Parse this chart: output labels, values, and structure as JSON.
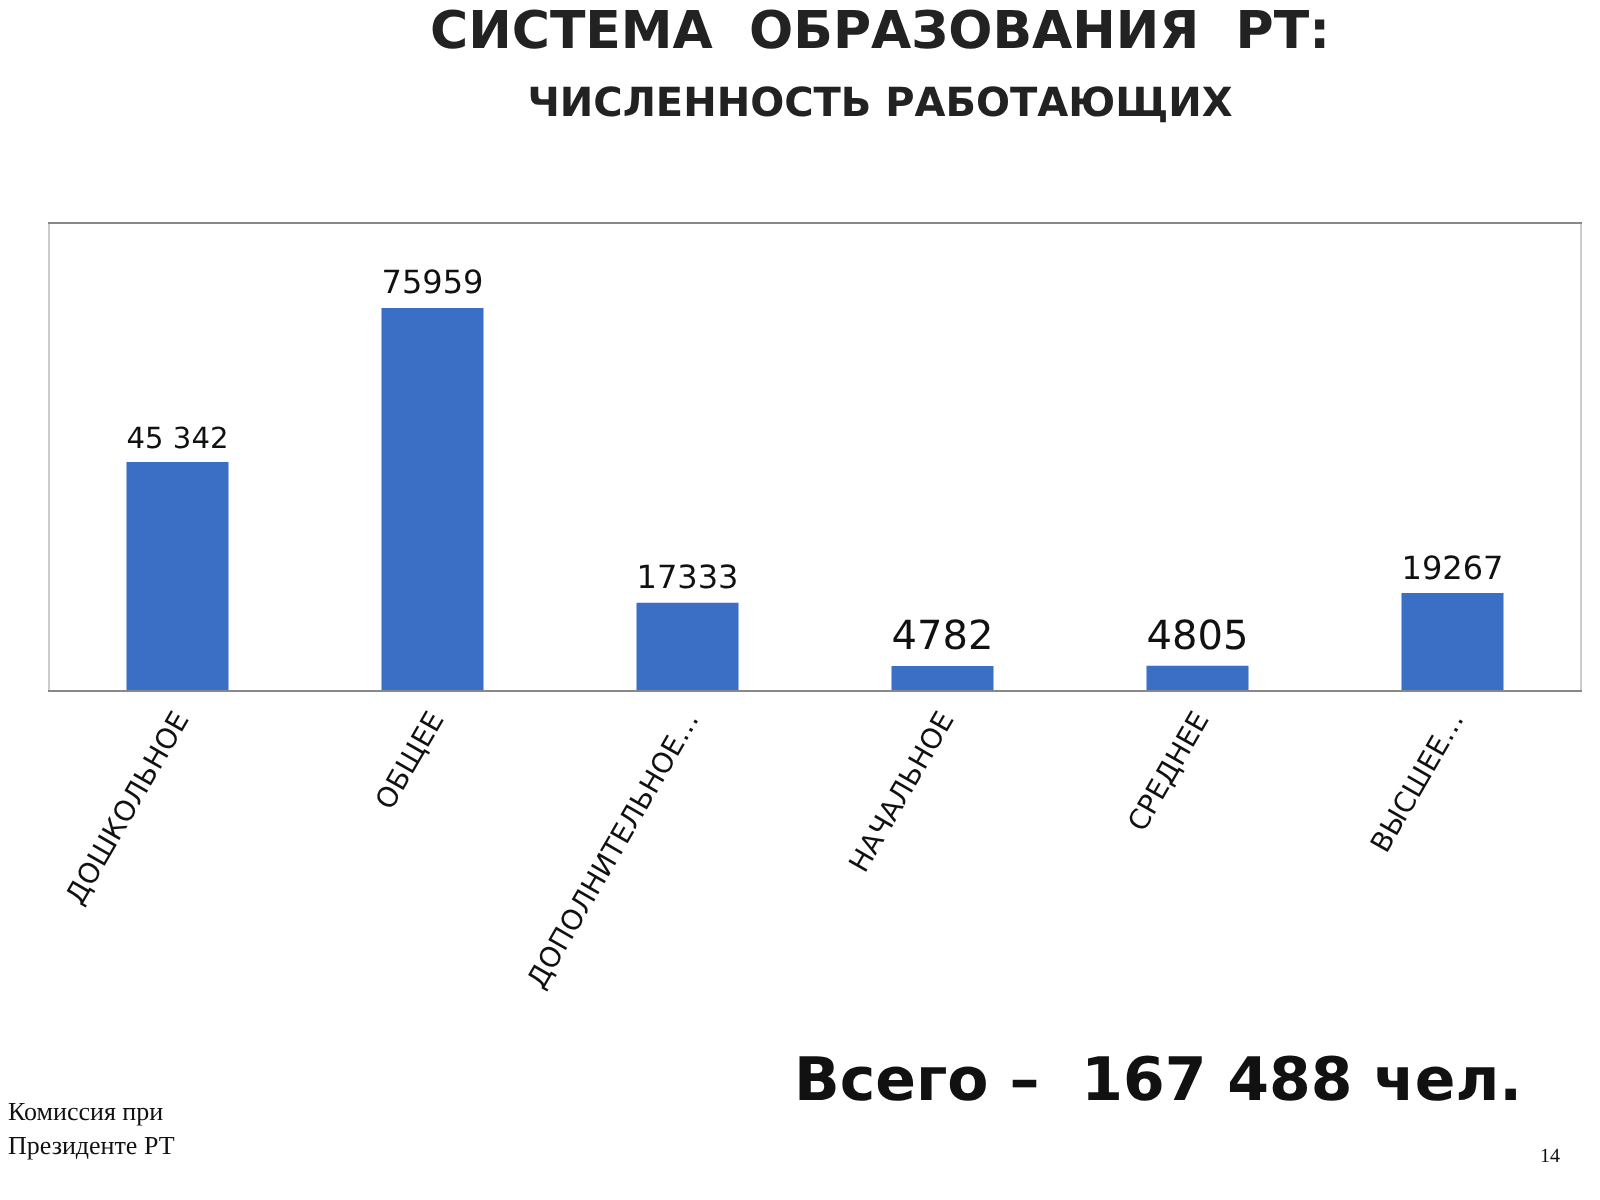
{
  "chart_data": {
    "type": "bar",
    "title": "СИСТЕМА  ОБРАЗОВАНИЯ  РТ:",
    "subtitle": "ЧИСЛЕННОСТЬ РАБОТАЮЩИХ",
    "categories": [
      "ДОШКОЛЬНОЕ",
      "ОБЩЕЕ",
      "ДОПОЛНИТЕЛЬНОЕ…",
      "НАЧАЛЬНОЕ",
      "СРЕДНЕЕ",
      "ВЫСШЕЕ…"
    ],
    "values": [
      45342,
      75959,
      17333,
      4782,
      4805,
      19267
    ],
    "value_labels": [
      "45 342",
      "75959",
      "17333",
      "4782",
      "4805",
      "19267"
    ],
    "color": "#3b6fc6",
    "annotations": [
      "Всего –  167 488 чел.",
      "Комиссия при Президенте РТ",
      "14"
    ]
  }
}
